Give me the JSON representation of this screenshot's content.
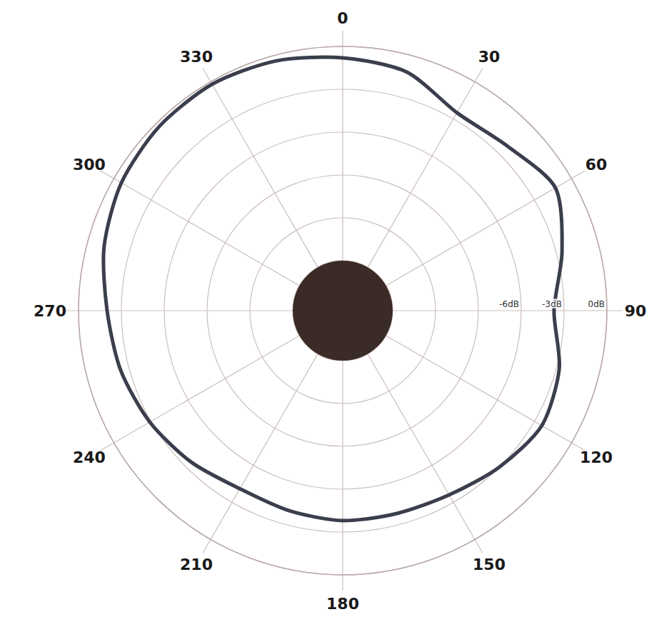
{
  "chart_data": {
    "type": "polar",
    "x": [
      0,
      15,
      30,
      45,
      60,
      75,
      90,
      105,
      120,
      135,
      150,
      165,
      180,
      195,
      210,
      225,
      240,
      255,
      270,
      285,
      300,
      315,
      330,
      345
    ],
    "values": [
      -0.8,
      -1.2,
      -2.5,
      -2.2,
      -1.3,
      -2.6,
      -3.7,
      -2.8,
      -2.4,
      -3.0,
      -3.6,
      -3.8,
      -3.8,
      -4.0,
      -4.1,
      -3.5,
      -2.9,
      -2.4,
      -2.0,
      -1.2,
      -0.6,
      -0.3,
      -0.2,
      -0.4
    ],
    "color": "#3b3e4c",
    "xlim": [
      0,
      360
    ],
    "xticks": [
      0,
      30,
      60,
      90,
      120,
      150,
      180,
      210,
      240,
      270,
      300,
      330
    ],
    "ylim": [
      -15,
      0
    ],
    "yticks": [
      {
        "value": -15,
        "label": null
      },
      {
        "value": -12,
        "label": null
      },
      {
        "value": -9,
        "label": null
      },
      {
        "value": -6,
        "label": "-6dB"
      },
      {
        "value": -3,
        "label": "-3dB"
      },
      {
        "value": 0,
        "label": "0dB"
      }
    ],
    "grid": true
  }
}
